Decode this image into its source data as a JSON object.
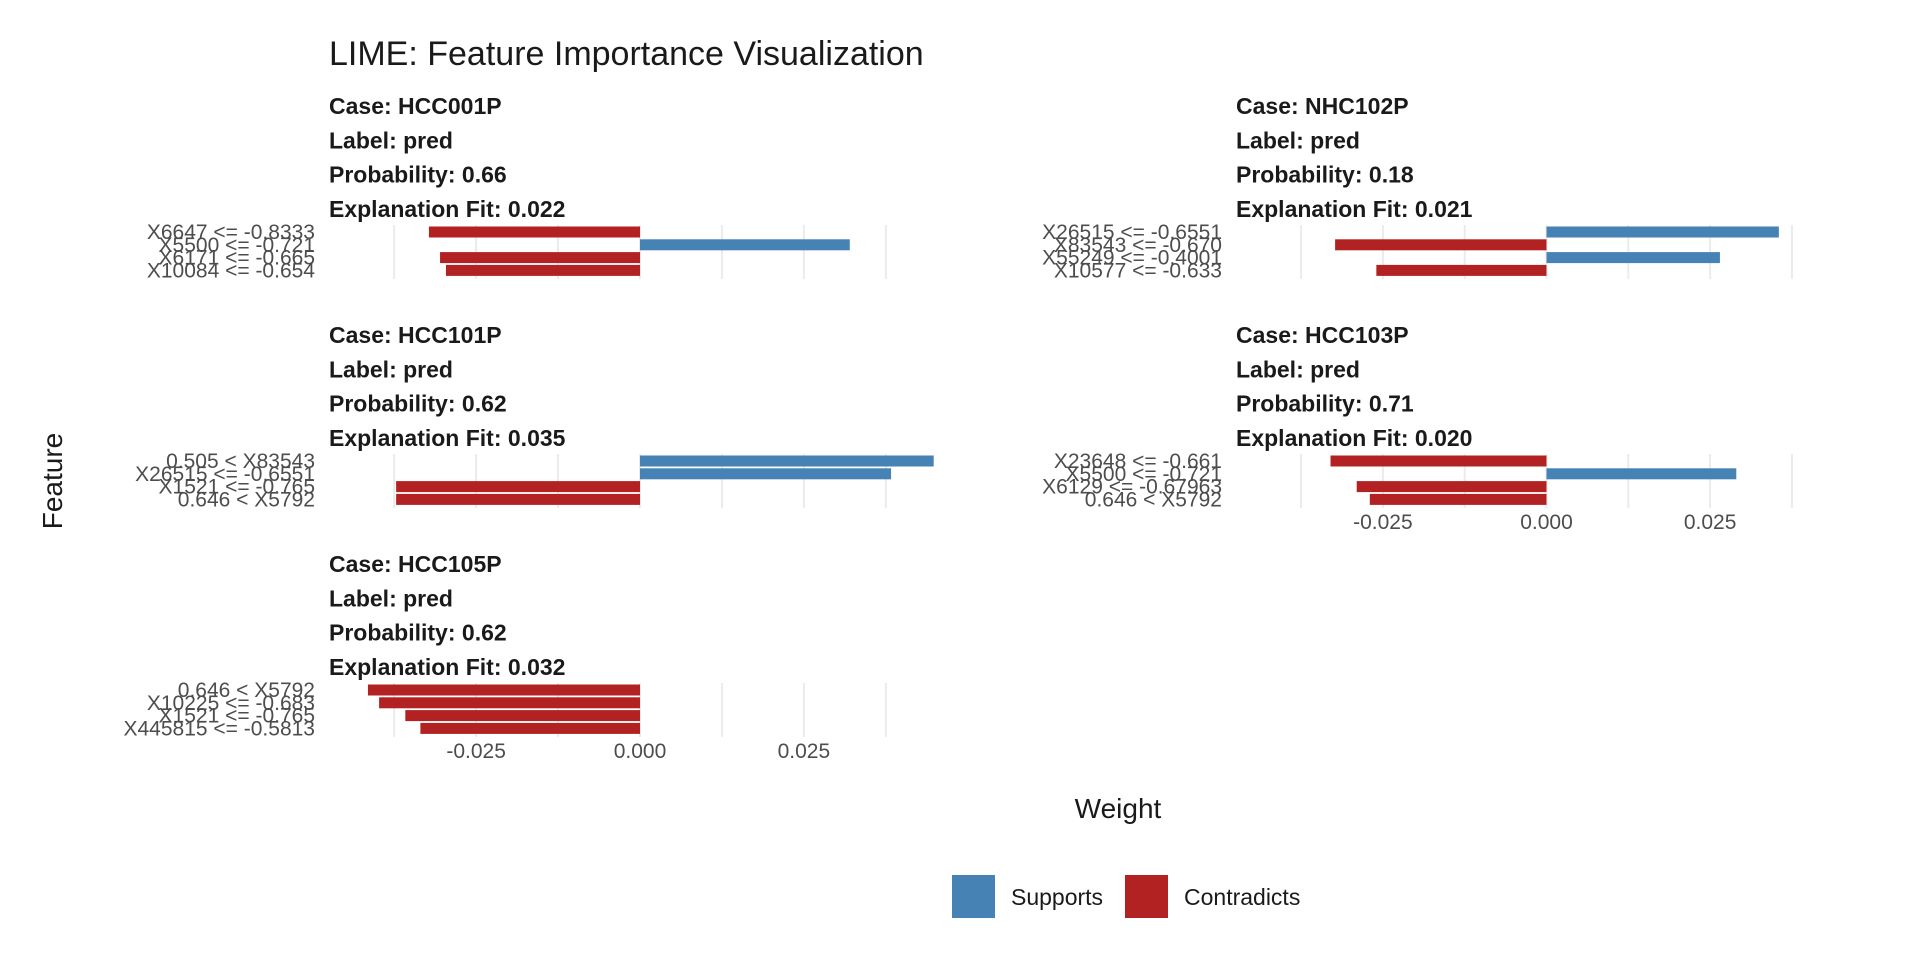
{
  "chart_data": {
    "type": "bar",
    "orientation": "horizontal",
    "title": "LIME: Feature Importance Visualization",
    "xlabel": "Weight",
    "ylabel": "Feature",
    "xlim": [
      -0.045,
      0.045
    ],
    "x_ticks": [
      "-0.025",
      "0.000",
      "0.025"
    ],
    "x_tick_values": [
      -0.025,
      0,
      0.025
    ],
    "grid": true,
    "colors": {
      "Supports": "#4682b4",
      "Contradicts": "#b22222"
    },
    "legend": {
      "position": "bottom",
      "entries": [
        "Supports",
        "Contradicts"
      ]
    },
    "panels": [
      {
        "case": "Case: HCC001P",
        "label": "Label: pred",
        "probability": "Probability: 0.66",
        "fit": "Explanation Fit: 0.022",
        "features": [
          "X6647 <= -0.8333",
          "X5500 <= -0.721",
          "X6171 <= -0.665",
          "X10084 <= -0.654"
        ],
        "weights": [
          -0.0322,
          0.032,
          -0.0305,
          -0.0296
        ],
        "show_x_axis": false
      },
      {
        "case": "Case: NHC102P",
        "label": "Label: pred",
        "probability": "Probability: 0.18",
        "fit": "Explanation Fit: 0.021",
        "features": [
          "X26515 <= -0.6551",
          "X83543 <= -0.670",
          "X55249 <= -0.4001",
          "X10577 <= -0.633"
        ],
        "weights": [
          0.0355,
          -0.0323,
          0.0265,
          -0.026
        ],
        "show_x_axis": false
      },
      {
        "case": "Case: HCC101P",
        "label": "Label: pred",
        "probability": "Probability: 0.62",
        "fit": "Explanation Fit: 0.035",
        "features": [
          "0.505 < X83543",
          "X26515 <= -0.6551",
          "X1521 <= -0.765",
          "0.646 < X5792"
        ],
        "weights": [
          0.0448,
          0.0383,
          -0.0372,
          -0.0372
        ],
        "show_x_axis": false
      },
      {
        "case": "Case: HCC103P",
        "label": "Label: pred",
        "probability": "Probability: 0.71",
        "fit": "Explanation Fit: 0.020",
        "features": [
          "X23648 <= -0.661",
          "X5500 <= -0.721",
          "X6129 <= -0.67963",
          "0.646 < X5792"
        ],
        "weights": [
          -0.033,
          0.029,
          -0.029,
          -0.027
        ],
        "show_x_axis": true
      },
      {
        "case": "Case: HCC105P",
        "label": "Label: pred",
        "probability": "Probability: 0.62",
        "fit": "Explanation Fit: 0.032",
        "features": [
          "0.646 < X5792",
          "X10225 <= -0.683",
          "X1521 <= -0.765",
          "X445815 <= -0.5813"
        ],
        "weights": [
          -0.0415,
          -0.0398,
          -0.0358,
          -0.0335
        ],
        "show_x_axis": true
      }
    ]
  }
}
